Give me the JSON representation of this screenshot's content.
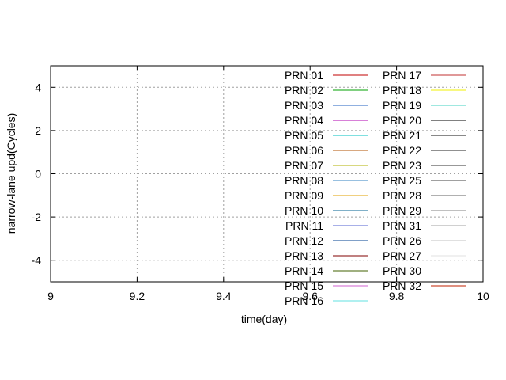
{
  "chart_data": {
    "type": "line",
    "title": "",
    "xlabel": "time(day)",
    "ylabel": "narrow-lane upd(Cycles)",
    "xlim": [
      9,
      10
    ],
    "ylim": [
      -5,
      5
    ],
    "xticks": [
      9,
      9.2,
      9.4,
      9.6,
      9.8,
      10
    ],
    "xtick_labels": [
      "9",
      "9.2",
      "9.4",
      "9.6",
      "9.8",
      "10"
    ],
    "yticks": [
      -4,
      -2,
      0,
      2,
      4
    ],
    "ytick_labels": [
      "-4",
      "-2",
      "0",
      "2",
      "4"
    ],
    "grid": true,
    "legend_position": "top-right",
    "series": [
      {
        "name": "PRN 01",
        "color": "#c00000",
        "values": []
      },
      {
        "name": "PRN 02",
        "color": "#00a000",
        "values": []
      },
      {
        "name": "PRN 03",
        "color": "#2060c0",
        "values": []
      },
      {
        "name": "PRN 04",
        "color": "#b000b0",
        "values": []
      },
      {
        "name": "PRN 05",
        "color": "#00c0c0",
        "values": []
      },
      {
        "name": "PRN 06",
        "color": "#b05000",
        "values": []
      },
      {
        "name": "PRN 07",
        "color": "#b0b000",
        "values": []
      },
      {
        "name": "PRN 08",
        "color": "#3080c0",
        "values": []
      },
      {
        "name": "PRN 09",
        "color": "#e0a000",
        "values": []
      },
      {
        "name": "PRN 10",
        "color": "#006090",
        "values": []
      },
      {
        "name": "PRN 11",
        "color": "#5060d0",
        "values": []
      },
      {
        "name": "PRN 12",
        "color": "#004090",
        "values": []
      },
      {
        "name": "PRN 13",
        "color": "#800000",
        "values": []
      },
      {
        "name": "PRN 14",
        "color": "#406000",
        "values": []
      },
      {
        "name": "PRN 15",
        "color": "#d060d0",
        "values": []
      },
      {
        "name": "PRN 16",
        "color": "#60e0e0",
        "values": []
      },
      {
        "name": "PRN 17",
        "color": "#c03030",
        "values": []
      },
      {
        "name": "PRN 18",
        "color": "#f0f000",
        "values": []
      },
      {
        "name": "PRN 19",
        "color": "#40d0c0",
        "values": []
      },
      {
        "name": "PRN 20",
        "color": "#000000",
        "values": []
      },
      {
        "name": "PRN 21",
        "color": "#101010",
        "values": []
      },
      {
        "name": "PRN 22",
        "color": "#202020",
        "values": []
      },
      {
        "name": "PRN 23",
        "color": "#303030",
        "values": []
      },
      {
        "name": "PRN 25",
        "color": "#404040",
        "values": []
      },
      {
        "name": "PRN 28",
        "color": "#606060",
        "values": []
      },
      {
        "name": "PRN 29",
        "color": "#808080",
        "values": []
      },
      {
        "name": "PRN 31",
        "color": "#a0a0a0",
        "values": []
      },
      {
        "name": "PRN 26",
        "color": "#c0c0c0",
        "values": []
      },
      {
        "name": "PRN 27",
        "color": "#e0e0e0",
        "values": []
      },
      {
        "name": "PRN 30",
        "color": "#ffffff",
        "values": []
      },
      {
        "name": "PRN 32",
        "color": "#c02000",
        "values": []
      }
    ]
  }
}
